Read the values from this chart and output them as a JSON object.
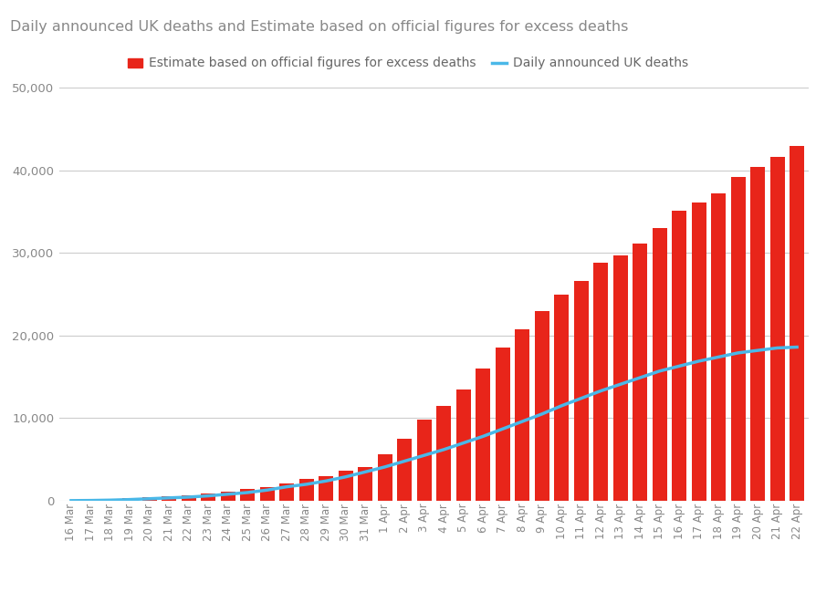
{
  "title": "Daily announced UK deaths and Estimate based on official figures for excess deaths",
  "bar_label": "Estimate based on official figures for excess deaths",
  "line_label": "Daily announced UK deaths",
  "bar_color": "#e8251a",
  "line_color": "#4ab8e8",
  "background_color": "#ffffff",
  "title_color": "#888888",
  "legend_color": "#666666",
  "tick_color": "#888888",
  "grid_color": "#cccccc",
  "ylim": [
    0,
    52000
  ],
  "yticks": [
    0,
    10000,
    20000,
    30000,
    40000,
    50000
  ],
  "dates": [
    "16 Mar",
    "17 Mar",
    "18 Mar",
    "19 Mar",
    "20 Mar",
    "21 Mar",
    "22 Mar",
    "23 Mar",
    "24 Mar",
    "25 Mar",
    "26 Mar",
    "27 Mar",
    "28 Mar",
    "29 Mar",
    "30 Mar",
    "31 Mar",
    "1 Apr",
    "2 Apr",
    "3 Apr",
    "4 Apr",
    "5 Apr",
    "6 Apr",
    "7 Apr",
    "8 Apr",
    "9 Apr",
    "10 Apr",
    "11 Apr",
    "12 Apr",
    "13 Apr",
    "14 Apr",
    "15 Apr",
    "16 Apr",
    "17 Apr",
    "18 Apr",
    "19 Apr",
    "20 Apr",
    "21 Apr",
    "22 Apr"
  ],
  "bar_values": [
    50,
    100,
    150,
    300,
    400,
    500,
    700,
    900,
    1100,
    1400,
    1700,
    2100,
    2600,
    3000,
    3600,
    4100,
    5600,
    7500,
    9800,
    11500,
    13500,
    16000,
    18500,
    20800,
    23000,
    25000,
    26600,
    28800,
    29700,
    31100,
    33000,
    35100,
    36100,
    37200,
    39200,
    40400,
    41600,
    43000
  ],
  "line_values": [
    20,
    40,
    80,
    150,
    250,
    350,
    450,
    600,
    800,
    1000,
    1300,
    1700,
    2000,
    2400,
    2900,
    3500,
    4100,
    4800,
    5500,
    6200,
    7000,
    7800,
    8700,
    9600,
    10500,
    11500,
    12400,
    13300,
    14100,
    14900,
    15700,
    16300,
    16900,
    17400,
    17900,
    18200,
    18500,
    18600
  ]
}
